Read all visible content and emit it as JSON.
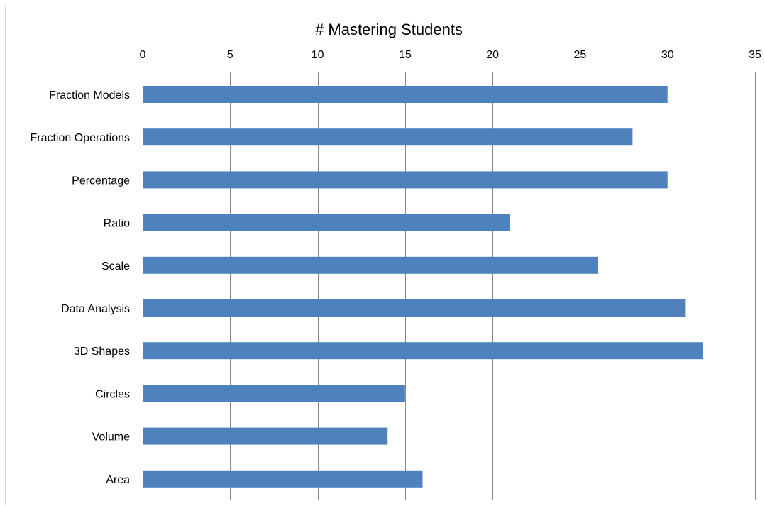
{
  "chart_data": {
    "type": "bar",
    "orientation": "horizontal",
    "title": "# Mastering Students",
    "xlabel": "",
    "ylabel": "",
    "categories": [
      "Fraction Models",
      "Fraction Operations",
      "Percentage",
      "Ratio",
      "Scale",
      "Data Analysis",
      "3D Shapes",
      "Circles",
      "Volume",
      "Area"
    ],
    "values": [
      30,
      28,
      30,
      21,
      26,
      31,
      32,
      15,
      14,
      16
    ],
    "xlim": [
      0,
      35
    ],
    "xticks": [
      "0",
      "5",
      "10",
      "15",
      "20",
      "25",
      "30",
      "35"
    ],
    "x_axis_position": "top",
    "grid": true,
    "legend": "none",
    "bar_color": "#4f81bd",
    "grid_color": "#878787"
  }
}
